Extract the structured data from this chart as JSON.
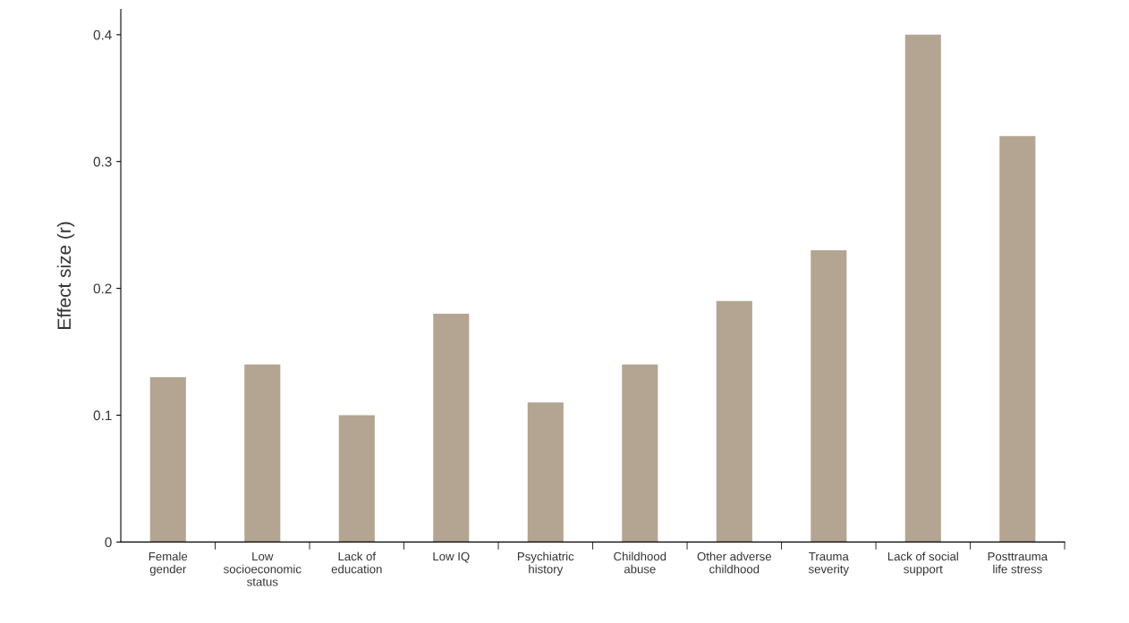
{
  "chart_data": {
    "type": "bar",
    "ylabel": "Effect size (r)",
    "categories": [
      "Female\ngender",
      "Low\nsocioeconomic\nstatus",
      "Lack of\neducation",
      "Low IQ",
      "Psychiatric\nhistory",
      "Childhood\nabuse",
      "Other adverse\nchildhood",
      "Trauma\nseverity",
      "Lack of social\nsupport",
      "Posttrauma\nlife stress"
    ],
    "values": [
      0.13,
      0.14,
      0.1,
      0.18,
      0.11,
      0.14,
      0.19,
      0.23,
      0.4,
      0.32
    ],
    "color": "#b3a591",
    "ylim": [
      0,
      0.42
    ],
    "yticks": [
      0,
      0.1,
      0.2,
      0.3,
      0.4
    ],
    "grid": false
  }
}
